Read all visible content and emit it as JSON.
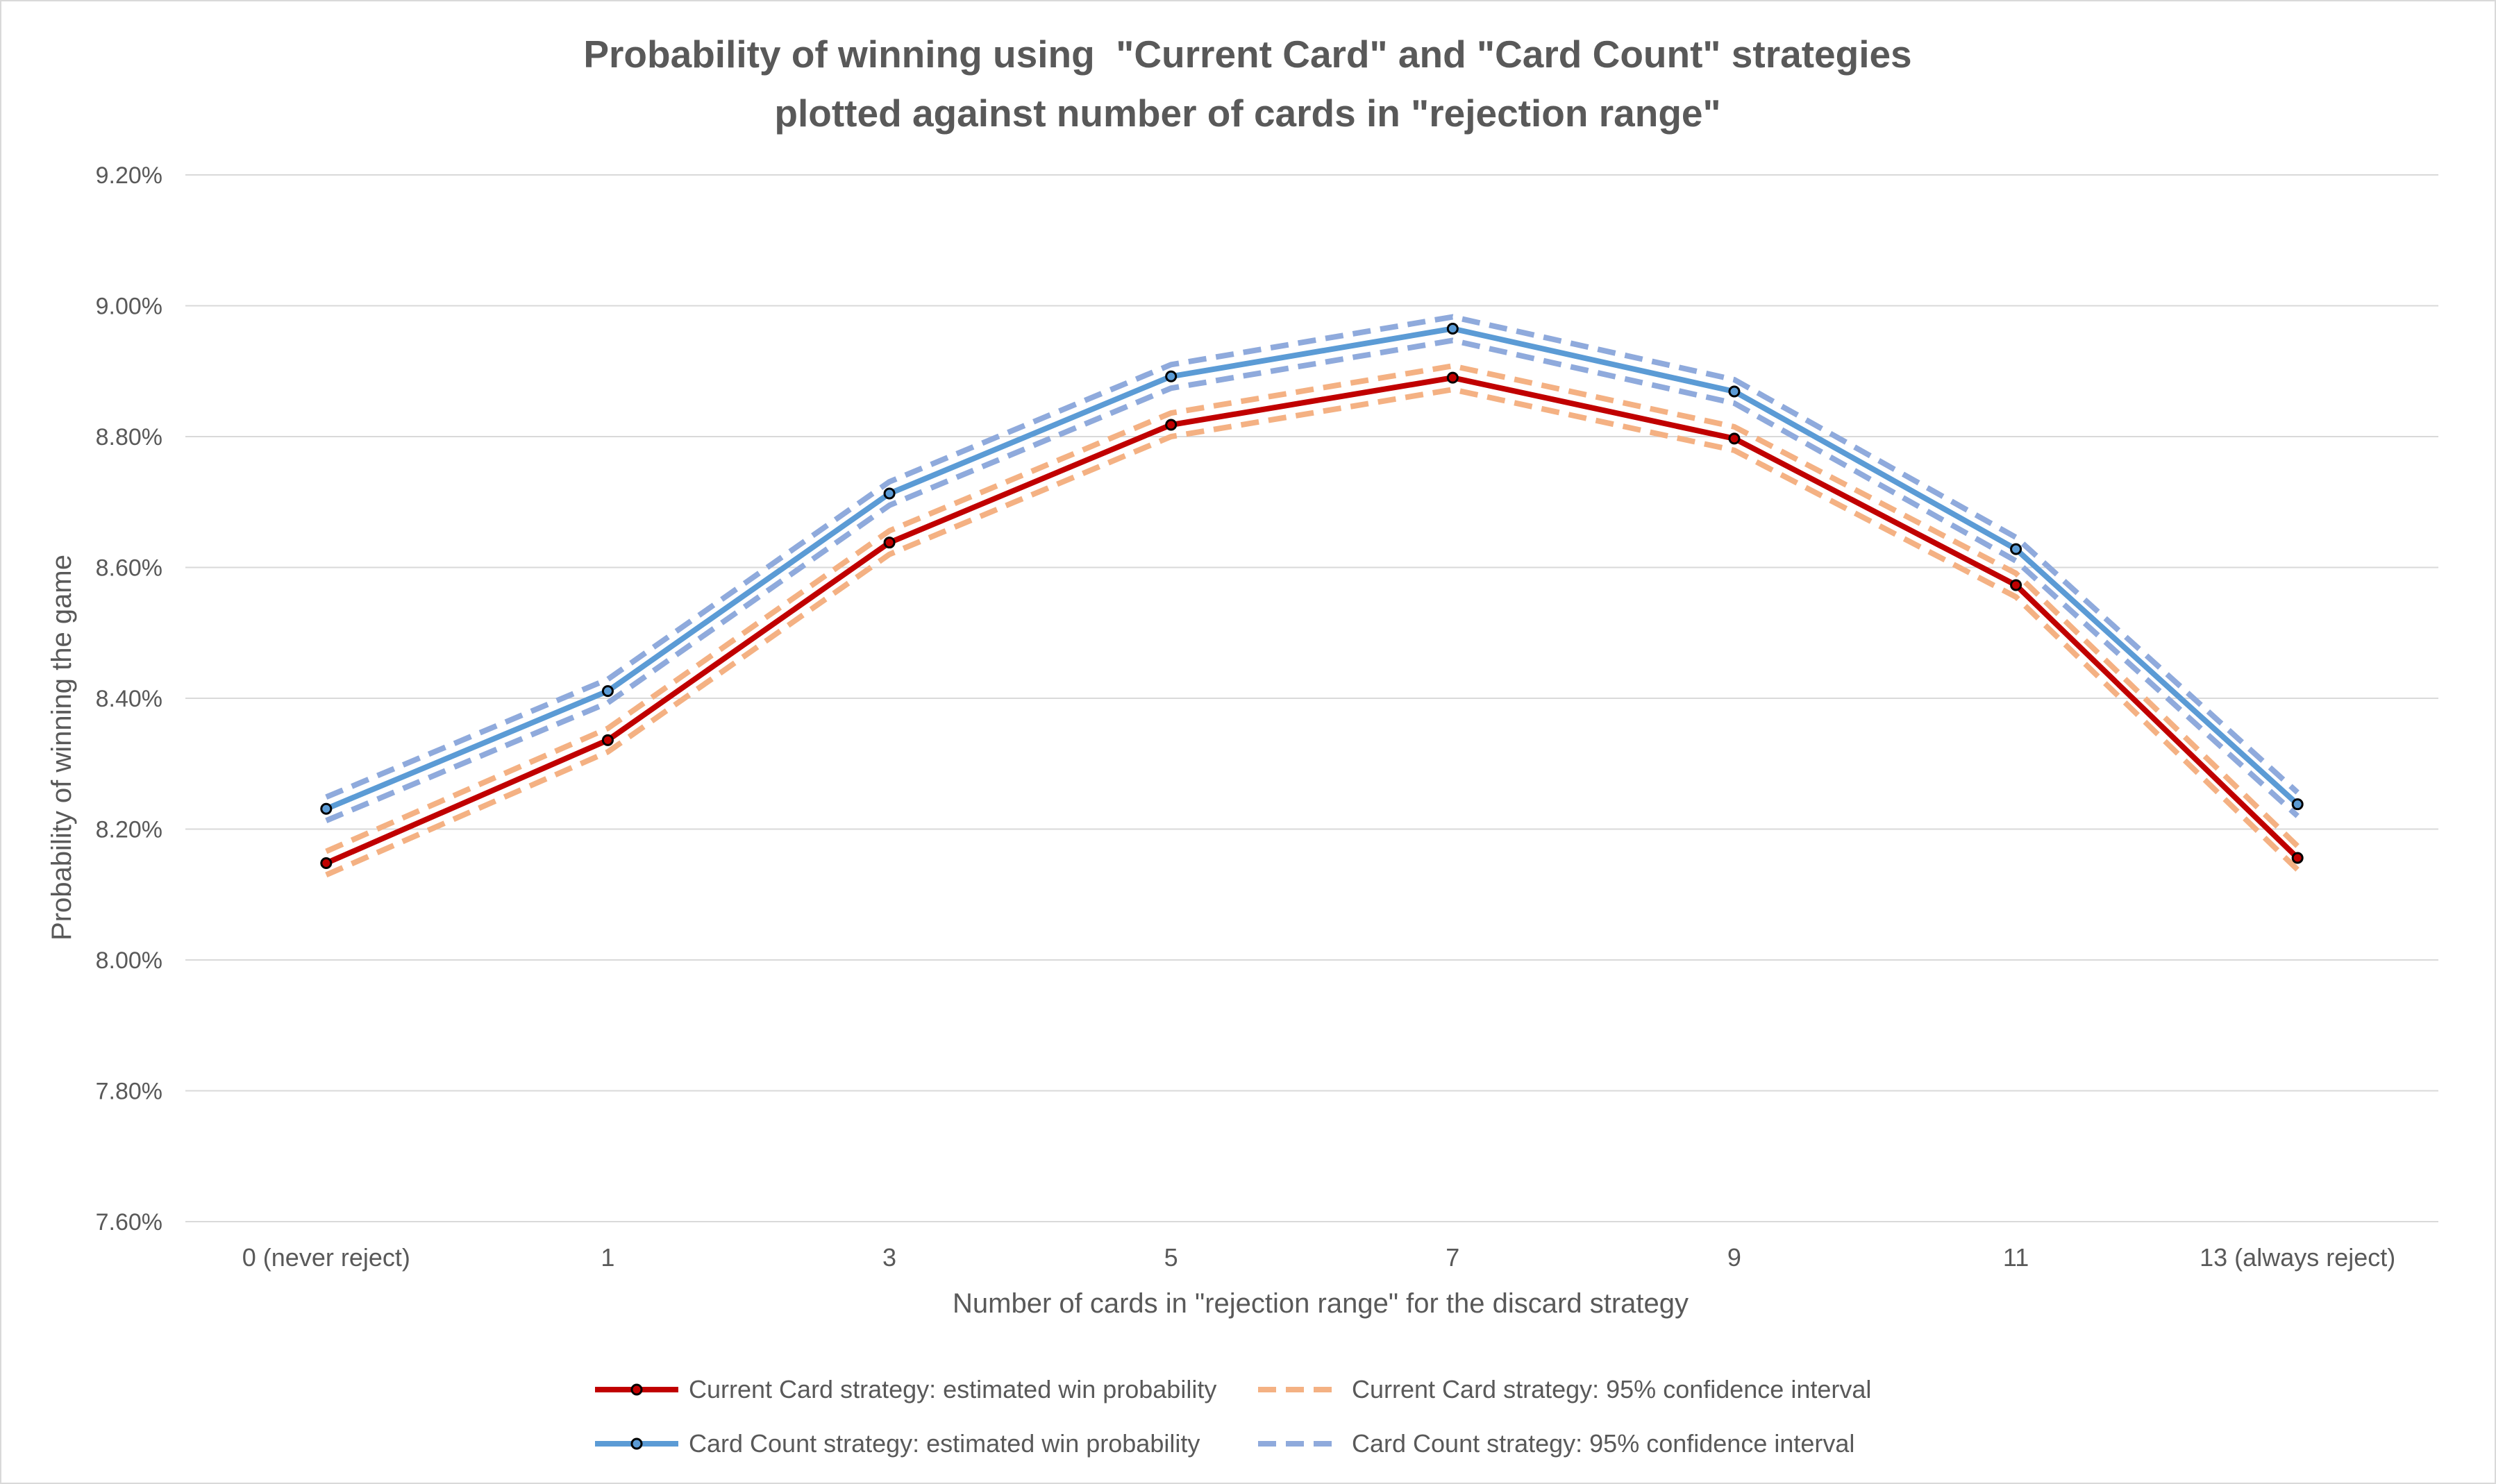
{
  "chart_data": {
    "type": "line",
    "title": "Probability of winning using  \"Current Card\" and \"Card Count\" strategies",
    "subtitle": "plotted against number of cards in \"rejection range\"",
    "xlabel": "Number of cards in \"rejection range\" for the discard strategy",
    "ylabel": "Probability of winning the game",
    "categories": [
      "0 (never reject)",
      "1",
      "3",
      "5",
      "7",
      "9",
      "11",
      "13 (always reject)"
    ],
    "ylim": [
      0.076,
      0.092
    ],
    "yticks": [
      "7.60%",
      "7.80%",
      "8.00%",
      "8.20%",
      "8.40%",
      "8.60%",
      "8.80%",
      "9.00%",
      "9.20%"
    ],
    "grid": true,
    "legend_position": "bottom",
    "series": [
      {
        "name": "Current Card strategy: estimated win probability",
        "color": "#c00000",
        "style": "solid",
        "markers": true,
        "values": [
          0.08148,
          0.08336,
          0.08638,
          0.08818,
          0.0889,
          0.08797,
          0.08573,
          0.08156
        ]
      },
      {
        "name": "Current Card strategy: 95% confidence interval",
        "color": "#f4b183",
        "style": "dashed",
        "markers": false,
        "values_upper": [
          0.08166,
          0.08354,
          0.08656,
          0.08836,
          0.08908,
          0.08815,
          0.08591,
          0.08174
        ],
        "values_lower": [
          0.0813,
          0.08318,
          0.0862,
          0.088,
          0.08872,
          0.08779,
          0.08555,
          0.08138
        ]
      },
      {
        "name": "Card Count strategy: estimated win probability",
        "color": "#5b9bd5",
        "style": "solid",
        "markers": true,
        "values": [
          0.08231,
          0.08411,
          0.08713,
          0.08892,
          0.08965,
          0.08869,
          0.08628,
          0.08238
        ]
      },
      {
        "name": "Card Count strategy: 95% confidence interval",
        "color": "#8faadc",
        "style": "dashed",
        "markers": false,
        "values_upper": [
          0.08249,
          0.08429,
          0.08731,
          0.0891,
          0.08983,
          0.08887,
          0.08646,
          0.08256
        ],
        "values_lower": [
          0.08213,
          0.08393,
          0.08695,
          0.08874,
          0.08947,
          0.08851,
          0.0861,
          0.0822
        ]
      }
    ]
  }
}
